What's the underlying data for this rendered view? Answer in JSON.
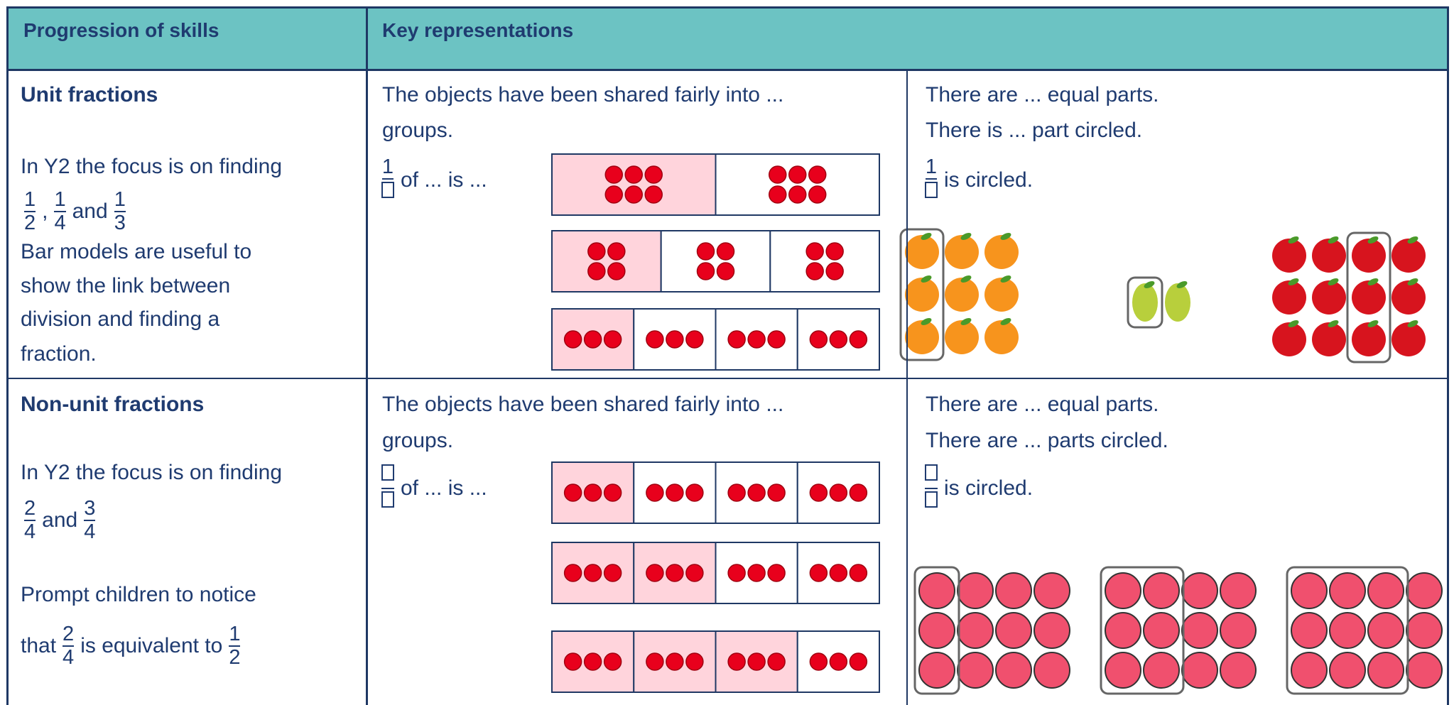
{
  "header": {
    "col1": "Progression of skills",
    "col2": "Key representations"
  },
  "rows": [
    {
      "title": "Unit fractions",
      "skills": [
        [
          {
            "text": "In Y2 the focus is on finding"
          }
        ],
        [
          {
            "num": "1",
            "den": "2"
          },
          {
            "text": ","
          },
          {
            "num": "1",
            "den": "4"
          },
          {
            "text": "and"
          },
          {
            "num": "1",
            "den": "3"
          }
        ],
        [
          {
            "text": "Bar models are useful to"
          }
        ],
        [
          {
            "text": "show the link between"
          }
        ],
        [
          {
            "text": "division and finding a"
          }
        ],
        [
          {
            "text": "fraction."
          }
        ]
      ],
      "sharing": {
        "lines": [
          "The objects have been shared fairly into ...",
          "groups."
        ],
        "fraction": {
          "num": "1"
        },
        "tail": "of ... is ...",
        "bars": [
          {
            "parts": 2,
            "shaded": 1,
            "dot_rows": 2,
            "dot_cols": 3
          },
          {
            "parts": 3,
            "shaded": 1,
            "dot_rows": 2,
            "dot_cols": 2
          },
          {
            "parts": 4,
            "shaded": 1,
            "dot_rows": 1,
            "dot_cols": 3
          }
        ]
      },
      "circling": {
        "lines": [
          "There are ... equal parts.",
          "There is ... part circled."
        ],
        "fraction": {
          "num": "1"
        },
        "tail": "is circled.",
        "groups": [
          {
            "color": "#f7941d",
            "rows": 3,
            "cols": 3,
            "circled_start": 0,
            "circled_count": 1
          },
          {
            "color": "#b8cf3c",
            "rows": 1,
            "cols": 2,
            "circled_start": 0,
            "circled_count": 1
          },
          {
            "color": "#d7141e",
            "rows": 3,
            "cols": 4,
            "circled_start": 2,
            "circled_count": 1
          }
        ]
      }
    },
    {
      "title": "Non-unit fractions",
      "skills": [
        [
          {
            "text": "In Y2 the focus is on finding"
          }
        ],
        [
          {
            "num": "2",
            "den": "4"
          },
          {
            "text": "and"
          },
          {
            "num": "3",
            "den": "4"
          }
        ],
        [
          {
            "text": "Prompt children to notice"
          }
        ],
        [
          {
            "text": "that"
          },
          {
            "num": "2",
            "den": "4"
          },
          {
            "text": "is equivalent to"
          },
          {
            "num": "1",
            "den": "2"
          }
        ]
      ],
      "sharing": {
        "lines": [
          "The objects have been shared fairly into ...",
          "groups."
        ],
        "fraction": {},
        "tail": "of ... is ...",
        "bars": [
          {
            "parts": 4,
            "shaded": 1,
            "dot_rows": 1,
            "dot_cols": 3
          },
          {
            "parts": 4,
            "shaded": 2,
            "dot_rows": 1,
            "dot_cols": 3
          },
          {
            "parts": 4,
            "shaded": 3,
            "dot_rows": 1,
            "dot_cols": 3
          }
        ]
      },
      "circling": {
        "lines": [
          "There are ... equal parts.",
          "There are ... parts circled."
        ],
        "fraction": {},
        "tail": "is circled.",
        "groups": [
          {
            "color": "#f0506e",
            "rows": 3,
            "cols": 4,
            "circled_start": 0,
            "circled_count": 1
          },
          {
            "color": "#f0506e",
            "rows": 3,
            "cols": 4,
            "circled_start": 0,
            "circled_count": 2
          },
          {
            "color": "#f0506e",
            "rows": 3,
            "cols": 4,
            "circled_start": 0,
            "circled_count": 3
          }
        ]
      }
    }
  ]
}
